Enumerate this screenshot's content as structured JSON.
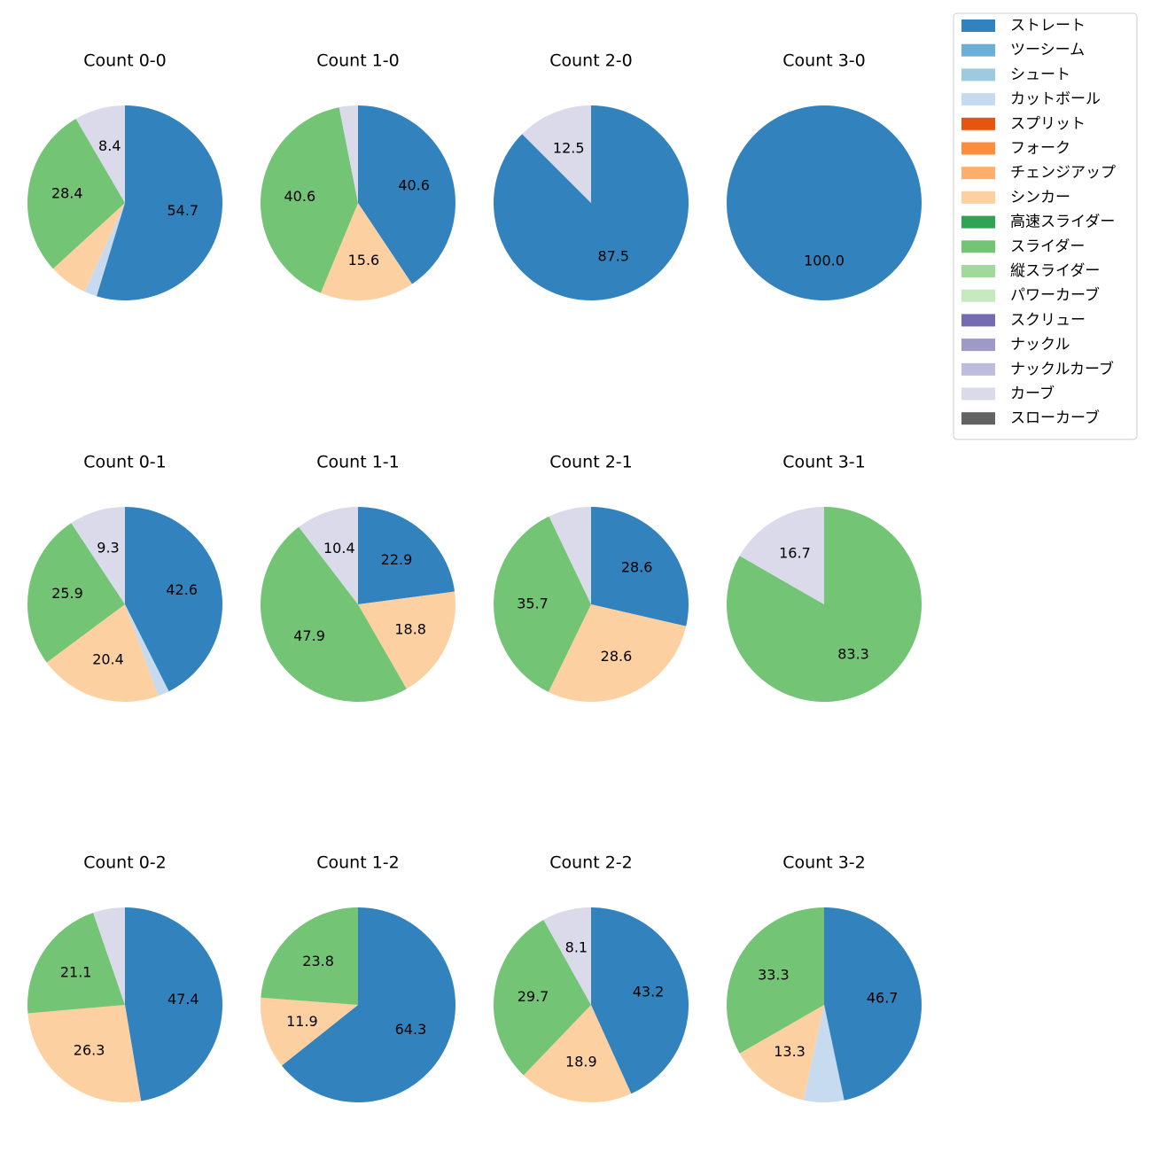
{
  "chart_data": {
    "type": "pie",
    "legend": {
      "placement": "top-right",
      "entries": [
        {
          "name": "ストレート",
          "color": "#3182bd"
        },
        {
          "name": "ツーシーム",
          "color": "#6baed6"
        },
        {
          "name": "シュート",
          "color": "#9ecae1"
        },
        {
          "name": "カットボール",
          "color": "#c6dbef"
        },
        {
          "name": "スプリット",
          "color": "#e6550d"
        },
        {
          "name": "フォーク",
          "color": "#fd8d3c"
        },
        {
          "name": "チェンジアップ",
          "color": "#fdae6b"
        },
        {
          "name": "シンカー",
          "color": "#fdd0a2"
        },
        {
          "name": "高速スライダー",
          "color": "#31a354"
        },
        {
          "name": "スライダー",
          "color": "#74c476"
        },
        {
          "name": "縦スライダー",
          "color": "#a1d99b"
        },
        {
          "name": "パワーカーブ",
          "color": "#c7e9c0"
        },
        {
          "name": "スクリュー",
          "color": "#756bb1"
        },
        {
          "name": "ナックル",
          "color": "#9e9ac8"
        },
        {
          "name": "ナックルカーブ",
          "color": "#bcbddc"
        },
        {
          "name": "カーブ",
          "color": "#dadaeb"
        },
        {
          "name": "スローカーブ",
          "color": "#636363"
        }
      ]
    },
    "charts": [
      {
        "title": "Count 0-0",
        "slices": [
          {
            "pitch": "ストレート",
            "value": 54.7,
            "label": "54.7"
          },
          {
            "pitch": "カットボール",
            "value": 2.1,
            "label": ""
          },
          {
            "pitch": "シンカー",
            "value": 6.4,
            "label": ""
          },
          {
            "pitch": "スライダー",
            "value": 28.4,
            "label": "28.4"
          },
          {
            "pitch": "カーブ",
            "value": 8.4,
            "label": "8.4"
          }
        ]
      },
      {
        "title": "Count 1-0",
        "slices": [
          {
            "pitch": "ストレート",
            "value": 40.6,
            "label": "40.6"
          },
          {
            "pitch": "シンカー",
            "value": 15.6,
            "label": "15.6"
          },
          {
            "pitch": "スライダー",
            "value": 40.6,
            "label": "40.6"
          },
          {
            "pitch": "カーブ",
            "value": 3.1,
            "label": ""
          }
        ]
      },
      {
        "title": "Count 2-0",
        "slices": [
          {
            "pitch": "ストレート",
            "value": 87.5,
            "label": "87.5"
          },
          {
            "pitch": "カーブ",
            "value": 12.5,
            "label": "12.5"
          }
        ]
      },
      {
        "title": "Count 3-0",
        "slices": [
          {
            "pitch": "ストレート",
            "value": 100.0,
            "label": "100.0"
          }
        ]
      },
      {
        "title": "Count 0-1",
        "slices": [
          {
            "pitch": "ストレート",
            "value": 42.6,
            "label": "42.6"
          },
          {
            "pitch": "カットボール",
            "value": 1.9,
            "label": ""
          },
          {
            "pitch": "シンカー",
            "value": 20.4,
            "label": "20.4"
          },
          {
            "pitch": "スライダー",
            "value": 25.9,
            "label": "25.9"
          },
          {
            "pitch": "カーブ",
            "value": 9.3,
            "label": "9.3"
          }
        ]
      },
      {
        "title": "Count 1-1",
        "slices": [
          {
            "pitch": "ストレート",
            "value": 22.9,
            "label": "22.9"
          },
          {
            "pitch": "シンカー",
            "value": 18.8,
            "label": "18.8"
          },
          {
            "pitch": "スライダー",
            "value": 47.9,
            "label": "47.9"
          },
          {
            "pitch": "カーブ",
            "value": 10.4,
            "label": "10.4"
          }
        ]
      },
      {
        "title": "Count 2-1",
        "slices": [
          {
            "pitch": "ストレート",
            "value": 28.6,
            "label": "28.6"
          },
          {
            "pitch": "シンカー",
            "value": 28.6,
            "label": "28.6"
          },
          {
            "pitch": "スライダー",
            "value": 35.7,
            "label": "35.7"
          },
          {
            "pitch": "カーブ",
            "value": 7.1,
            "label": ""
          }
        ]
      },
      {
        "title": "Count 3-1",
        "slices": [
          {
            "pitch": "スライダー",
            "value": 83.3,
            "label": "83.3"
          },
          {
            "pitch": "カーブ",
            "value": 16.7,
            "label": "16.7"
          }
        ]
      },
      {
        "title": "Count 0-2",
        "slices": [
          {
            "pitch": "ストレート",
            "value": 47.4,
            "label": "47.4"
          },
          {
            "pitch": "シンカー",
            "value": 26.3,
            "label": "26.3"
          },
          {
            "pitch": "スライダー",
            "value": 21.1,
            "label": "21.1"
          },
          {
            "pitch": "カーブ",
            "value": 5.3,
            "label": ""
          }
        ]
      },
      {
        "title": "Count 1-2",
        "slices": [
          {
            "pitch": "ストレート",
            "value": 64.3,
            "label": "64.3"
          },
          {
            "pitch": "シンカー",
            "value": 11.9,
            "label": "11.9"
          },
          {
            "pitch": "スライダー",
            "value": 23.8,
            "label": "23.8"
          }
        ]
      },
      {
        "title": "Count 2-2",
        "slices": [
          {
            "pitch": "ストレート",
            "value": 43.2,
            "label": "43.2"
          },
          {
            "pitch": "シンカー",
            "value": 18.9,
            "label": "18.9"
          },
          {
            "pitch": "スライダー",
            "value": 29.7,
            "label": "29.7"
          },
          {
            "pitch": "カーブ",
            "value": 8.1,
            "label": "8.1"
          }
        ]
      },
      {
        "title": "Count 3-2",
        "slices": [
          {
            "pitch": "ストレート",
            "value": 46.7,
            "label": "46.7"
          },
          {
            "pitch": "カットボール",
            "value": 6.7,
            "label": ""
          },
          {
            "pitch": "シンカー",
            "value": 13.3,
            "label": "13.3"
          },
          {
            "pitch": "スライダー",
            "value": 33.3,
            "label": "33.3"
          }
        ]
      }
    ]
  }
}
